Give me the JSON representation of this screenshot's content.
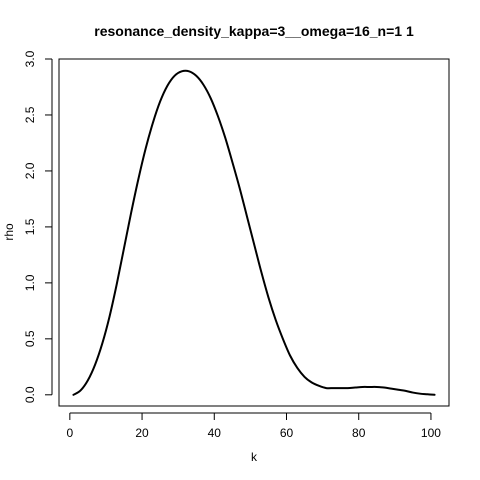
{
  "chart_data": {
    "type": "line",
    "title": "resonance_density_kappa=3__omega=16_n=1 1",
    "xlabel": "k",
    "ylabel": "rho",
    "xlim": [
      -3,
      105
    ],
    "ylim": [
      -0.1,
      3.0
    ],
    "x_ticks": [
      "0",
      "20",
      "40",
      "60",
      "80",
      "100"
    ],
    "y_ticks": [
      "0.0",
      "0.5",
      "1.0",
      "1.5",
      "2.0",
      "2.5",
      "3.0"
    ],
    "grid": false,
    "legend": "none",
    "series": [
      {
        "color": "#000000",
        "x": [
          1,
          3,
          5,
          7,
          9,
          11,
          13,
          15,
          17,
          19,
          21,
          23,
          25,
          27,
          29,
          31,
          33,
          35,
          37,
          39,
          41,
          43,
          45,
          47,
          49,
          51,
          53,
          55,
          57,
          59,
          61,
          63,
          65,
          67,
          69,
          71,
          73,
          75,
          77,
          79,
          81,
          83,
          85,
          87,
          89,
          91,
          93,
          95,
          97,
          99,
          101
        ],
        "y": [
          0.0,
          0.04,
          0.13,
          0.27,
          0.46,
          0.7,
          0.99,
          1.31,
          1.63,
          1.93,
          2.2,
          2.43,
          2.62,
          2.76,
          2.85,
          2.89,
          2.89,
          2.85,
          2.77,
          2.65,
          2.49,
          2.3,
          2.08,
          1.85,
          1.6,
          1.35,
          1.1,
          0.87,
          0.67,
          0.5,
          0.35,
          0.24,
          0.16,
          0.11,
          0.08,
          0.06,
          0.06,
          0.06,
          0.06,
          0.065,
          0.07,
          0.07,
          0.07,
          0.065,
          0.055,
          0.045,
          0.035,
          0.02,
          0.01,
          0.005,
          0.0
        ]
      }
    ]
  }
}
